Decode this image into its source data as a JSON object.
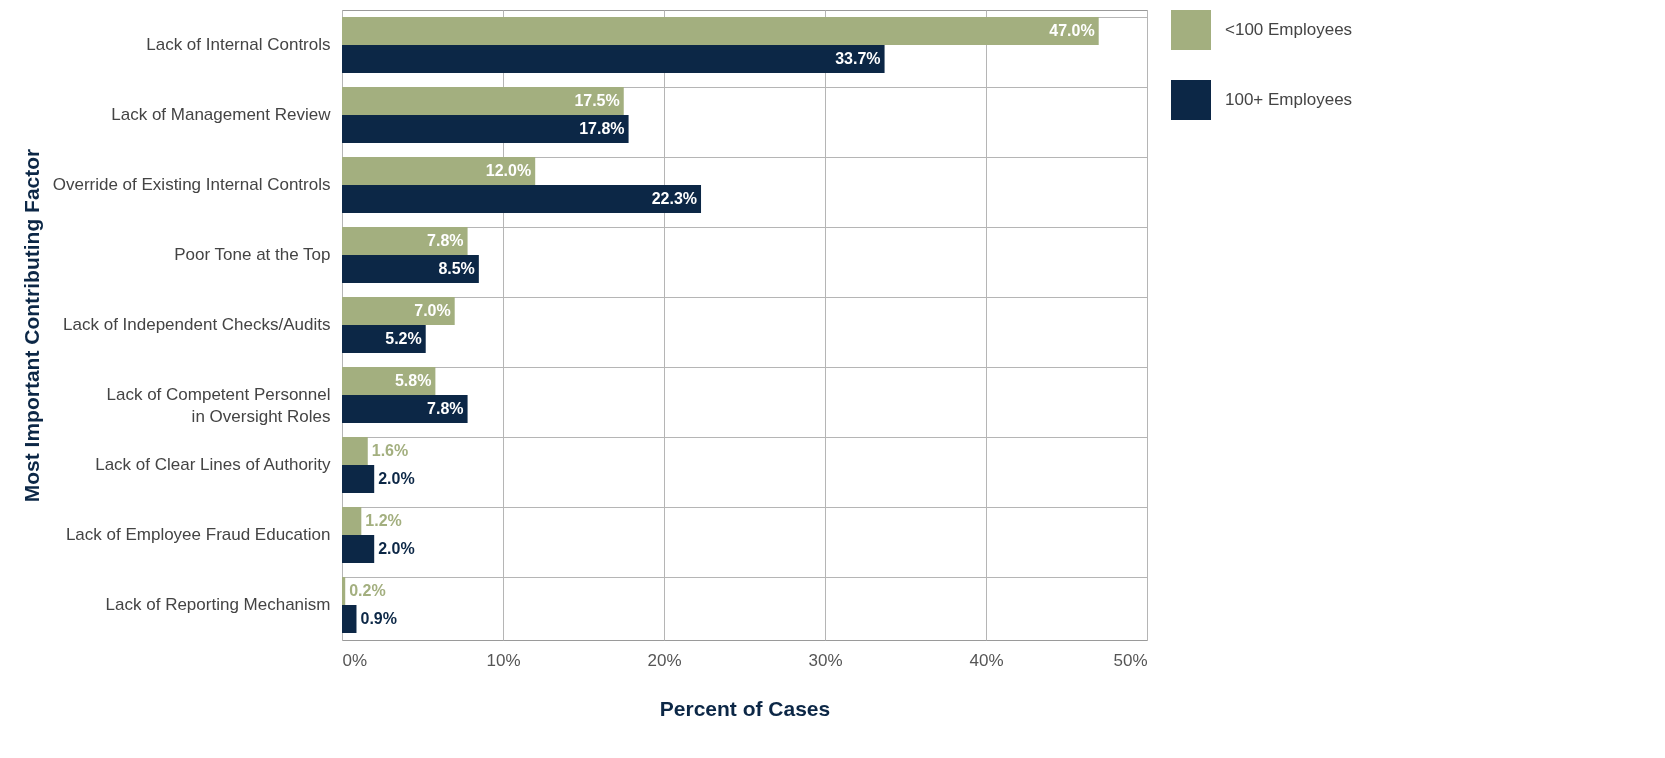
{
  "chart_data": {
    "type": "bar",
    "orientation": "horizontal",
    "xlabel": "Percent of Cases",
    "ylabel": "Most Important Contributing Factor",
    "categories": [
      "Lack of Internal Controls",
      "Lack of Management Review",
      "Override of Existing Internal Controls",
      "Poor Tone at the Top",
      "Lack of Independent Checks/Audits",
      "Lack of Competent Personnel\nin Oversight Roles",
      "Lack of Clear Lines of Authority",
      "Lack of Employee Fraud Education",
      "Lack of Reporting Mechanism"
    ],
    "series": [
      {
        "name": "<100 Employees",
        "color": "#a3af7f",
        "values": [
          47.0,
          17.5,
          12.0,
          7.8,
          7.0,
          5.8,
          1.6,
          1.2,
          0.2
        ],
        "value_labels": [
          "47.0%",
          "17.5%",
          "12.0%",
          "7.8%",
          "7.0%",
          "5.8%",
          "1.6%",
          "1.2%",
          "0.2%"
        ]
      },
      {
        "name": "100+ Employees",
        "color": "#0c2746",
        "values": [
          33.7,
          17.8,
          22.3,
          8.5,
          5.2,
          7.8,
          2.0,
          2.0,
          0.9
        ],
        "value_labels": [
          "33.7%",
          "17.8%",
          "22.3%",
          "8.5%",
          "5.2%",
          "7.8%",
          "2.0%",
          "2.0%",
          "0.9%"
        ]
      }
    ],
    "xlim": [
      0,
      50
    ],
    "xticks": [
      {
        "value": 0,
        "label": "0%"
      },
      {
        "value": 10,
        "label": "10%"
      },
      {
        "value": 20,
        "label": "20%"
      },
      {
        "value": 30,
        "label": "30%"
      },
      {
        "value": 40,
        "label": "40%"
      },
      {
        "value": 50,
        "label": "50%"
      }
    ],
    "grid": true,
    "legend": "top right"
  }
}
